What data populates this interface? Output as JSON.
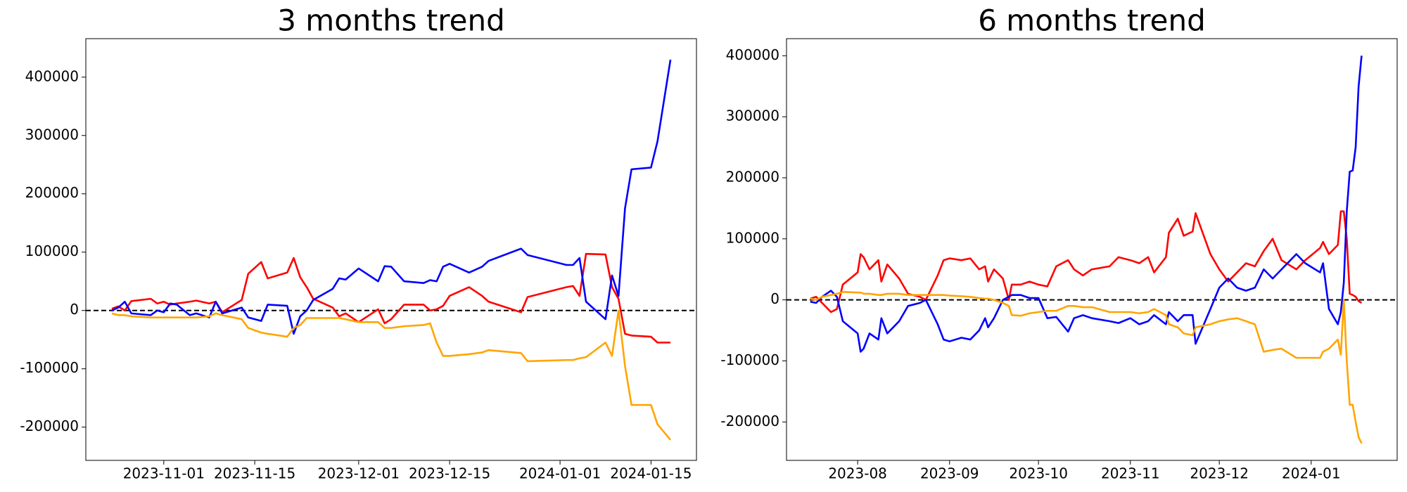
{
  "chart_data": [
    {
      "type": "line",
      "title": "3 months trend",
      "grid": false,
      "hline": 0,
      "xlim": [
        "2023-10-20",
        "2024-01-22"
      ],
      "xticks": [
        "2023-11-01",
        "2023-11-15",
        "2023-12-01",
        "2023-12-15",
        "2024-01-01",
        "2024-01-15"
      ],
      "ylim": [
        -257000,
        466000
      ],
      "yticks": [
        -200000,
        -100000,
        0,
        100000,
        200000,
        300000,
        400000
      ],
      "x": [
        "2023-10-24",
        "2023-10-25",
        "2023-10-26",
        "2023-10-27",
        "2023-10-30",
        "2023-10-31",
        "2023-11-01",
        "2023-11-02",
        "2023-11-03",
        "2023-11-05",
        "2023-11-06",
        "2023-11-08",
        "2023-11-09",
        "2023-11-10",
        "2023-11-13",
        "2023-11-14",
        "2023-11-16",
        "2023-11-17",
        "2023-11-20",
        "2023-11-21",
        "2023-11-22",
        "2023-11-23",
        "2023-11-24",
        "2023-11-27",
        "2023-11-28",
        "2023-11-29",
        "2023-12-01",
        "2023-12-04",
        "2023-12-05",
        "2023-12-06",
        "2023-12-08",
        "2023-12-11",
        "2023-12-12",
        "2023-12-13",
        "2023-12-14",
        "2023-12-15",
        "2023-12-18",
        "2023-12-20",
        "2023-12-21",
        "2023-12-26",
        "2023-12-27",
        "2024-01-02",
        "2024-01-03",
        "2024-01-04",
        "2024-01-05",
        "2024-01-08",
        "2024-01-09",
        "2024-01-10",
        "2024-01-11",
        "2024-01-12",
        "2024-01-15",
        "2024-01-16",
        "2024-01-18"
      ],
      "series": [
        {
          "color": "#ff0000",
          "values": [
            3000,
            7000,
            0,
            16000,
            20000,
            12000,
            15000,
            10000,
            12000,
            15000,
            17000,
            12000,
            15000,
            -3000,
            18000,
            63000,
            83000,
            55000,
            65000,
            90000,
            57000,
            40000,
            20000,
            5000,
            -10000,
            -5000,
            -20000,
            2000,
            -22000,
            -15000,
            10000,
            10000,
            0,
            2000,
            8000,
            25000,
            40000,
            25000,
            15000,
            -3000,
            23000,
            40000,
            42000,
            25000,
            97000,
            96000,
            40000,
            20000,
            -40000,
            -43000,
            -45000,
            -55000,
            -55000
          ]
        },
        {
          "color": "#0000ff",
          "values": [
            0,
            5000,
            15000,
            -5000,
            -8000,
            0,
            -3000,
            12000,
            10000,
            -8000,
            -5000,
            -12000,
            15000,
            -5000,
            5000,
            -12000,
            -18000,
            10000,
            8000,
            -40000,
            -10000,
            0,
            18000,
            37000,
            55000,
            53000,
            72000,
            50000,
            76000,
            75000,
            50000,
            47000,
            52000,
            50000,
            75000,
            80000,
            65000,
            75000,
            85000,
            106000,
            95000,
            78000,
            78000,
            90000,
            15000,
            -15000,
            60000,
            25000,
            175000,
            242000,
            245000,
            290000,
            430000
          ]
        },
        {
          "color": "#ffa500",
          "values": [
            -5000,
            -8000,
            -8000,
            -10000,
            -12000,
            -12000,
            -12000,
            -12000,
            -12000,
            -12000,
            -12000,
            -10000,
            -5000,
            -8000,
            -15000,
            -30000,
            -38000,
            -40000,
            -45000,
            -30000,
            -25000,
            -13000,
            -13000,
            -13000,
            -13000,
            -15000,
            -20000,
            -20000,
            -30000,
            -30000,
            -27000,
            -25000,
            -22000,
            -55000,
            -78000,
            -78000,
            -75000,
            -72000,
            -68000,
            -73000,
            -87000,
            -85000,
            -85000,
            -82000,
            -80000,
            -55000,
            -78000,
            0,
            -95000,
            -162000,
            -162000,
            -195000,
            -222000
          ]
        }
      ]
    },
    {
      "type": "line",
      "title": "6 months trend",
      "grid": false,
      "hline": 0,
      "xlim": [
        "2023-07-08",
        "2024-01-30"
      ],
      "xticks": [
        {
          "value": "2023-08-01",
          "label": "2023-08"
        },
        {
          "value": "2023-09-01",
          "label": "2023-09"
        },
        {
          "value": "2023-10-01",
          "label": "2023-10"
        },
        {
          "value": "2023-11-01",
          "label": "2023-11"
        },
        {
          "value": "2023-12-01",
          "label": "2023-12"
        },
        {
          "value": "2024-01-01",
          "label": "2024-01"
        }
      ],
      "ylim": [
        -263000,
        428000
      ],
      "yticks": [
        -200000,
        -100000,
        0,
        100000,
        200000,
        300000,
        400000
      ],
      "x": [
        "2023-07-16",
        "2023-07-18",
        "2023-07-20",
        "2023-07-23",
        "2023-07-25",
        "2023-07-27",
        "2023-08-01",
        "2023-08-02",
        "2023-08-03",
        "2023-08-05",
        "2023-08-08",
        "2023-08-09",
        "2023-08-11",
        "2023-08-15",
        "2023-08-18",
        "2023-08-22",
        "2023-08-24",
        "2023-08-28",
        "2023-08-30",
        "2023-09-01",
        "2023-09-05",
        "2023-09-08",
        "2023-09-11",
        "2023-09-13",
        "2023-09-14",
        "2023-09-16",
        "2023-09-19",
        "2023-09-21",
        "2023-09-22",
        "2023-09-25",
        "2023-09-28",
        "2023-10-01",
        "2023-10-04",
        "2023-10-07",
        "2023-10-11",
        "2023-10-13",
        "2023-10-16",
        "2023-10-19",
        "2023-10-25",
        "2023-10-28",
        "2023-11-01",
        "2023-11-04",
        "2023-11-07",
        "2023-11-09",
        "2023-11-13",
        "2023-11-14",
        "2023-11-17",
        "2023-11-19",
        "2023-11-22",
        "2023-11-23",
        "2023-11-28",
        "2023-12-01",
        "2023-12-04",
        "2023-12-07",
        "2023-12-10",
        "2023-12-13",
        "2023-12-16",
        "2023-12-19",
        "2023-12-22",
        "2023-12-27",
        "2023-12-30",
        "2024-01-04",
        "2024-01-05",
        "2024-01-07",
        "2024-01-10",
        "2024-01-11",
        "2024-01-12",
        "2024-01-13",
        "2024-01-14",
        "2024-01-15",
        "2024-01-16",
        "2024-01-17",
        "2024-01-18"
      ],
      "series": [
        {
          "color": "#ff0000",
          "values": [
            2000,
            5000,
            -5000,
            -20000,
            -15000,
            25000,
            45000,
            75000,
            70000,
            50000,
            65000,
            30000,
            58000,
            35000,
            10000,
            5000,
            0,
            40000,
            65000,
            68000,
            65000,
            68000,
            50000,
            55000,
            30000,
            50000,
            35000,
            0,
            25000,
            25000,
            30000,
            25000,
            22000,
            55000,
            65000,
            50000,
            40000,
            50000,
            55000,
            70000,
            65000,
            60000,
            70000,
            45000,
            70000,
            110000,
            133000,
            105000,
            112000,
            142000,
            75000,
            50000,
            30000,
            45000,
            60000,
            55000,
            80000,
            100000,
            65000,
            50000,
            65000,
            85000,
            95000,
            75000,
            90000,
            145000,
            145000,
            100000,
            10000,
            8000,
            5000,
            -2000,
            -5000
          ]
        },
        {
          "color": "#0000ff",
          "values": [
            -3000,
            -5000,
            5000,
            15000,
            5000,
            -35000,
            -55000,
            -85000,
            -80000,
            -55000,
            -65000,
            -30000,
            -55000,
            -35000,
            -10000,
            -5000,
            0,
            -40000,
            -65000,
            -68000,
            -62000,
            -65000,
            -50000,
            -30000,
            -45000,
            -30000,
            0,
            5000,
            8000,
            8000,
            3000,
            3000,
            -30000,
            -28000,
            -52000,
            -30000,
            -25000,
            -30000,
            -35000,
            -38000,
            -30000,
            -40000,
            -35000,
            -25000,
            -40000,
            -20000,
            -35000,
            -25000,
            -25000,
            -72000,
            -15000,
            20000,
            35000,
            20000,
            15000,
            20000,
            50000,
            35000,
            50000,
            75000,
            60000,
            45000,
            60000,
            -15000,
            -40000,
            -20000,
            28000,
            145000,
            210000,
            212000,
            250000,
            350000,
            400000
          ]
        },
        {
          "color": "#ffa500",
          "values": [
            2000,
            0,
            5000,
            8000,
            10000,
            13000,
            12000,
            12000,
            10000,
            10000,
            8000,
            8000,
            10000,
            10000,
            8000,
            8000,
            8000,
            8000,
            8000,
            7000,
            6000,
            5000,
            3000,
            2000,
            2000,
            0,
            -5000,
            -10000,
            -25000,
            -26000,
            -22000,
            -20000,
            -18000,
            -18000,
            -10000,
            -10000,
            -12000,
            -12000,
            -20000,
            -20000,
            -20000,
            -22000,
            -20000,
            -15000,
            -25000,
            -40000,
            -45000,
            -55000,
            -58000,
            -45000,
            -40000,
            -35000,
            -32000,
            -30000,
            -35000,
            -40000,
            -85000,
            -82000,
            -80000,
            -95000,
            -95000,
            -95000,
            -85000,
            -80000,
            -65000,
            -90000,
            0,
            -100000,
            -172000,
            -172000,
            -200000,
            -225000,
            -235000
          ]
        }
      ]
    }
  ]
}
